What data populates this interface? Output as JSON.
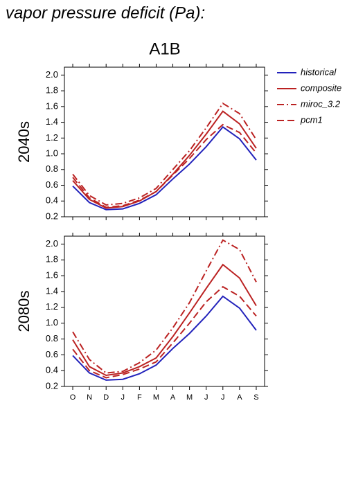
{
  "title": "vapor pressure deficit (Pa):",
  "subtitle": "A1B",
  "chart_data": [
    {
      "type": "line",
      "ylabel": "2040s",
      "ylim": [
        0.2,
        2.1
      ],
      "yticks": [
        0.2,
        0.4,
        0.6,
        0.8,
        {
          "value": 1.0,
          "label": "1.0"
        },
        1.2,
        1.4,
        1.6,
        1.8,
        {
          "value": 2.0,
          "label": "2.0"
        }
      ],
      "series": [
        {
          "name": "historical",
          "color": "#2222bb",
          "dash": "solid",
          "values": [
            0.59,
            0.38,
            0.29,
            0.3,
            0.37,
            0.48,
            0.68,
            0.87,
            1.09,
            1.34,
            1.19,
            0.92
          ]
        },
        {
          "name": "composite",
          "color": "#bb2222",
          "dash": "solid",
          "values": [
            0.66,
            0.42,
            0.31,
            0.33,
            0.4,
            0.52,
            0.74,
            0.98,
            1.25,
            1.54,
            1.38,
            1.07
          ]
        },
        {
          "name": "miroc_3.2",
          "color": "#bb2222",
          "dash": "dashdot",
          "values": [
            0.74,
            0.47,
            0.35,
            0.37,
            0.44,
            0.56,
            0.8,
            1.04,
            1.33,
            1.64,
            1.51,
            1.18
          ]
        },
        {
          "name": "pcm1",
          "color": "#bb2222",
          "dash": "dash",
          "values": [
            0.7,
            0.44,
            0.32,
            0.34,
            0.41,
            0.52,
            0.73,
            0.94,
            1.18,
            1.37,
            1.27,
            1.01
          ]
        }
      ]
    },
    {
      "type": "line",
      "ylabel": "2080s",
      "ylim": [
        0.2,
        2.1
      ],
      "categories": [
        "O",
        "N",
        "D",
        "J",
        "F",
        "M",
        "A",
        "M",
        "J",
        "J",
        "A",
        "S"
      ],
      "yticks": [
        0.2,
        0.4,
        0.6,
        0.8,
        {
          "value": 1.0,
          "label": "1.0"
        },
        1.2,
        1.4,
        1.6,
        1.8,
        {
          "value": 2.0,
          "label": "2.0"
        }
      ],
      "series": [
        {
          "color": "#2222bb",
          "dash": "solid",
          "values": [
            0.59,
            0.37,
            0.28,
            0.29,
            0.36,
            0.47,
            0.68,
            0.87,
            1.09,
            1.34,
            1.19,
            0.91
          ]
        },
        {
          "color": "#bb2222",
          "dash": "solid",
          "values": [
            0.79,
            0.45,
            0.34,
            0.37,
            0.45,
            0.56,
            0.83,
            1.13,
            1.44,
            1.74,
            1.57,
            1.22
          ]
        },
        {
          "color": "#bb2222",
          "dash": "dashdot",
          "values": [
            0.89,
            0.54,
            0.37,
            0.39,
            0.5,
            0.66,
            0.94,
            1.26,
            1.66,
            2.05,
            1.93,
            1.52
          ]
        },
        {
          "color": "#bb2222",
          "dash": "dash",
          "values": [
            0.67,
            0.4,
            0.31,
            0.35,
            0.42,
            0.51,
            0.75,
            1.0,
            1.27,
            1.46,
            1.34,
            1.09
          ]
        }
      ]
    }
  ]
}
